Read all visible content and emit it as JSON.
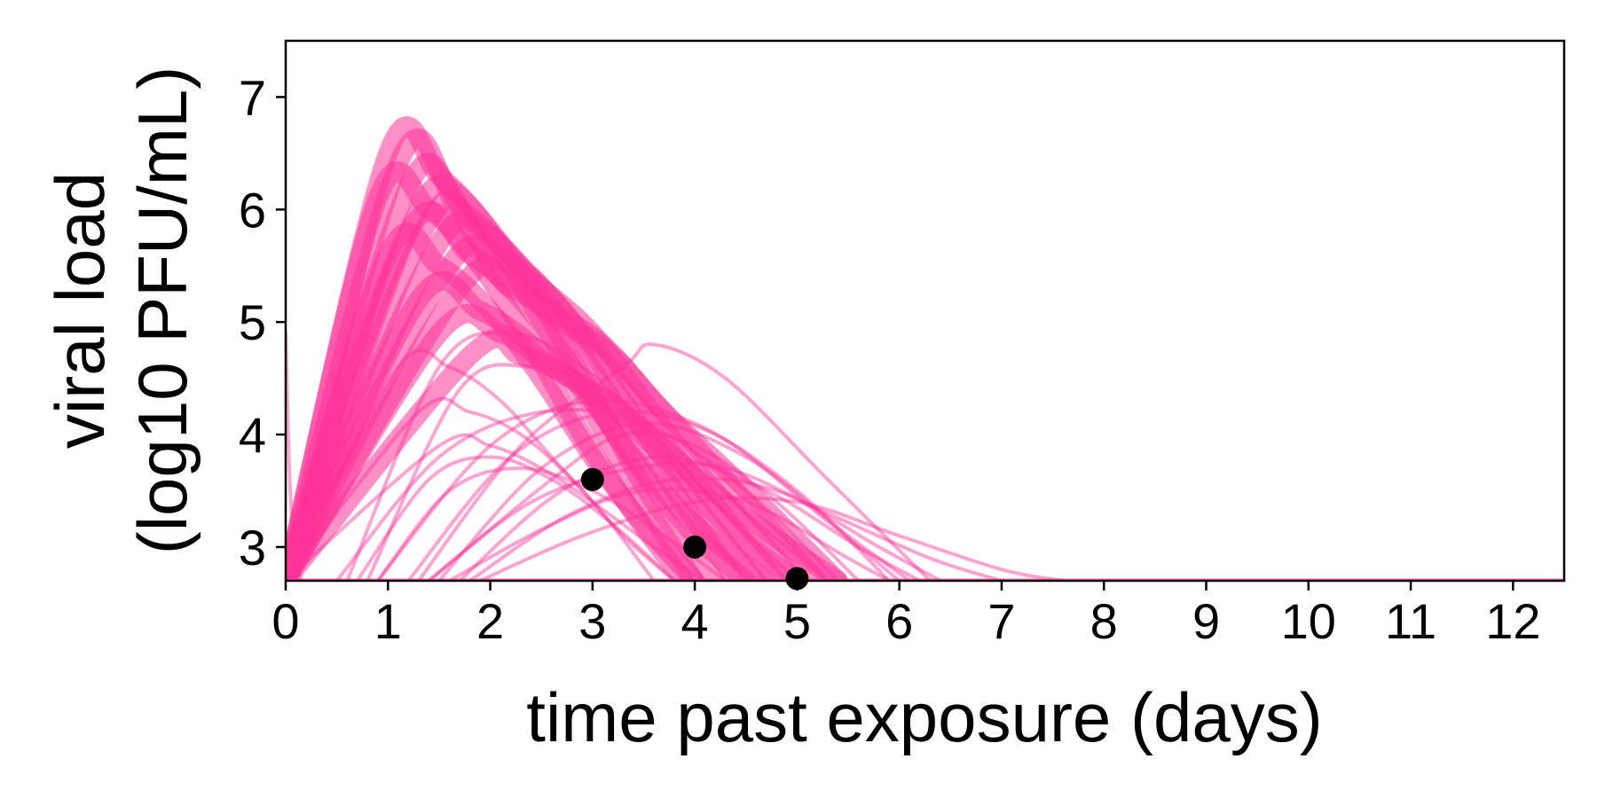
{
  "chart_data": {
    "type": "line",
    "xlabel": "time past exposure (days)",
    "ylabel_line1": "viral load",
    "ylabel_line2": "(log10 PFU/mL)",
    "xlim": [
      0,
      12.5
    ],
    "ylim": [
      2.7,
      7.5
    ],
    "x_ticks": [
      "0",
      "1",
      "2",
      "3",
      "4",
      "5",
      "6",
      "7",
      "8",
      "9",
      "10",
      "11",
      "12"
    ],
    "y_ticks": [
      "3",
      "4",
      "5",
      "6",
      "7"
    ],
    "grid": false,
    "legend": "none",
    "colors": {
      "curves": "#ff3399",
      "observed": "#000000"
    },
    "series": [
      {
        "values": [
          [
            0,
            2.7
          ],
          [
            1.0,
            6.5
          ],
          [
            1.5,
            6.3
          ],
          [
            2.0,
            5.8
          ],
          [
            2.5,
            5.0
          ],
          [
            3.0,
            4.2
          ],
          [
            3.5,
            3.4
          ],
          [
            4.0,
            2.7
          ]
        ]
      },
      {
        "values": [
          [
            0,
            2.7
          ],
          [
            1.1,
            6.4
          ],
          [
            1.6,
            6.2
          ],
          [
            2.1,
            5.7
          ],
          [
            2.6,
            5.0
          ],
          [
            3.1,
            4.2
          ],
          [
            3.6,
            3.4
          ],
          [
            4.2,
            2.7
          ]
        ]
      },
      {
        "values": [
          [
            0,
            2.7
          ],
          [
            1.2,
            6.2
          ],
          [
            1.7,
            6.0
          ],
          [
            2.2,
            5.6
          ],
          [
            2.7,
            5.0
          ],
          [
            3.2,
            4.3
          ],
          [
            3.8,
            3.5
          ],
          [
            4.4,
            2.7
          ]
        ]
      },
      {
        "values": [
          [
            0,
            2.7
          ],
          [
            1.3,
            6.0
          ],
          [
            1.8,
            5.9
          ],
          [
            2.3,
            5.5
          ],
          [
            2.8,
            5.0
          ],
          [
            3.3,
            4.3
          ],
          [
            3.9,
            3.5
          ],
          [
            4.6,
            2.7
          ]
        ]
      },
      {
        "values": [
          [
            0,
            2.7
          ],
          [
            1.4,
            5.9
          ],
          [
            1.9,
            5.7
          ],
          [
            2.4,
            5.4
          ],
          [
            2.9,
            4.9
          ],
          [
            3.4,
            4.3
          ],
          [
            4.0,
            3.6
          ],
          [
            4.8,
            2.7
          ]
        ]
      },
      {
        "values": [
          [
            0,
            2.7
          ],
          [
            1.5,
            5.7
          ],
          [
            2.0,
            5.6
          ],
          [
            2.5,
            5.3
          ],
          [
            3.0,
            4.9
          ],
          [
            3.5,
            4.3
          ],
          [
            4.1,
            3.6
          ],
          [
            5.0,
            2.7
          ]
        ]
      },
      {
        "values": [
          [
            0,
            2.7
          ],
          [
            1.6,
            5.5
          ],
          [
            2.1,
            5.4
          ],
          [
            2.6,
            5.1
          ],
          [
            3.1,
            4.8
          ],
          [
            3.6,
            4.3
          ],
          [
            4.3,
            3.6
          ],
          [
            5.2,
            2.7
          ]
        ]
      },
      {
        "values": [
          [
            0,
            2.7
          ],
          [
            1.7,
            5.3
          ],
          [
            2.2,
            5.3
          ],
          [
            2.7,
            5.0
          ],
          [
            3.2,
            4.7
          ],
          [
            3.7,
            4.2
          ],
          [
            4.4,
            3.6
          ],
          [
            5.4,
            2.7
          ]
        ]
      },
      {
        "values": [
          [
            0,
            2.7
          ],
          [
            0.9,
            6.1
          ],
          [
            1.4,
            6.0
          ],
          [
            1.9,
            5.5
          ],
          [
            2.4,
            4.8
          ],
          [
            2.9,
            4.0
          ],
          [
            3.4,
            3.3
          ],
          [
            3.9,
            2.7
          ]
        ]
      },
      {
        "values": [
          [
            0,
            2.7
          ],
          [
            1.0,
            5.6
          ],
          [
            1.5,
            5.5
          ],
          [
            2.0,
            5.1
          ],
          [
            2.5,
            4.5
          ],
          [
            3.0,
            3.8
          ],
          [
            3.5,
            3.2
          ],
          [
            4.0,
            2.7
          ]
        ]
      },
      {
        "values": [
          [
            0,
            2.7
          ],
          [
            1.2,
            5.8
          ],
          [
            1.8,
            5.6
          ],
          [
            2.3,
            5.2
          ],
          [
            2.8,
            4.6
          ],
          [
            3.3,
            3.9
          ],
          [
            3.9,
            3.2
          ],
          [
            4.5,
            2.7
          ]
        ]
      },
      {
        "values": [
          [
            0,
            2.7
          ],
          [
            1.3,
            5.2
          ],
          [
            1.9,
            5.1
          ],
          [
            2.4,
            4.8
          ],
          [
            2.9,
            4.4
          ],
          [
            3.4,
            3.8
          ],
          [
            4.0,
            3.2
          ],
          [
            4.7,
            2.7
          ]
        ]
      },
      {
        "values": [
          [
            0,
            2.7
          ],
          [
            1.5,
            4.9
          ],
          [
            2.1,
            4.9
          ],
          [
            2.6,
            4.6
          ],
          [
            3.1,
            4.3
          ],
          [
            3.7,
            3.8
          ],
          [
            4.3,
            3.2
          ],
          [
            5.0,
            2.7
          ]
        ]
      },
      {
        "values": [
          [
            0,
            2.7
          ],
          [
            1.8,
            4.7
          ],
          [
            2.3,
            4.7
          ],
          [
            2.8,
            4.5
          ],
          [
            3.3,
            4.2
          ],
          [
            3.9,
            3.7
          ],
          [
            4.6,
            3.2
          ],
          [
            5.4,
            2.7
          ]
        ]
      },
      {
        "values": [
          [
            0,
            2.7
          ],
          [
            1.1,
            4.6
          ],
          [
            1.6,
            4.6
          ],
          [
            2.1,
            4.3
          ],
          [
            2.6,
            3.8
          ],
          [
            3.1,
            3.3
          ],
          [
            3.6,
            2.7
          ]
        ]
      },
      {
        "values": [
          [
            0,
            2.7
          ],
          [
            1.3,
            4.2
          ],
          [
            1.8,
            4.2
          ],
          [
            2.3,
            4.0
          ],
          [
            2.8,
            3.6
          ],
          [
            3.3,
            3.1
          ],
          [
            3.8,
            2.7
          ]
        ]
      },
      {
        "values": [
          [
            0,
            2.7
          ],
          [
            1.5,
            3.9
          ],
          [
            2.0,
            3.9
          ],
          [
            2.5,
            3.7
          ],
          [
            3.0,
            3.4
          ],
          [
            3.6,
            3.0
          ],
          [
            4.1,
            2.7
          ]
        ]
      },
      {
        "values": [
          [
            0.5,
            2.7
          ],
          [
            1.5,
            3.8
          ],
          [
            2.5,
            4.2
          ],
          [
            3.5,
            4.1
          ],
          [
            4.5,
            3.5
          ],
          [
            5.4,
            2.7
          ]
        ]
      },
      {
        "values": [
          [
            0.9,
            2.7
          ],
          [
            2.0,
            3.9
          ],
          [
            3.0,
            4.3
          ],
          [
            4.0,
            4.1
          ],
          [
            5.0,
            3.5
          ],
          [
            5.9,
            2.7
          ]
        ]
      },
      {
        "values": [
          [
            1.2,
            2.7
          ],
          [
            2.2,
            3.8
          ],
          [
            3.2,
            4.2
          ],
          [
            4.2,
            4.0
          ],
          [
            5.2,
            3.3
          ],
          [
            6.0,
            2.7
          ]
        ]
      },
      {
        "values": [
          [
            1.5,
            2.7
          ],
          [
            2.5,
            3.7
          ],
          [
            3.5,
            4.1
          ],
          [
            4.5,
            3.8
          ],
          [
            5.5,
            3.1
          ],
          [
            6.1,
            2.7
          ]
        ]
      },
      {
        "values": [
          [
            1.3,
            2.7
          ],
          [
            2.3,
            3.9
          ],
          [
            3.3,
            4.6
          ],
          [
            3.6,
            4.8
          ],
          [
            4.3,
            4.5
          ],
          [
            5.3,
            3.6
          ],
          [
            6.3,
            2.7
          ]
        ]
      },
      {
        "values": [
          [
            1.6,
            2.7
          ],
          [
            2.6,
            3.2
          ],
          [
            3.5,
            3.5
          ],
          [
            4.5,
            3.4
          ],
          [
            5.5,
            2.9
          ],
          [
            5.9,
            2.7
          ]
        ]
      },
      {
        "values": [
          [
            1.8,
            2.7
          ],
          [
            2.8,
            3.3
          ],
          [
            3.8,
            3.6
          ],
          [
            4.8,
            3.5
          ],
          [
            5.8,
            3.0
          ],
          [
            6.4,
            2.7
          ]
        ]
      },
      {
        "values": [
          [
            1.4,
            2.7
          ],
          [
            2.4,
            3.4
          ],
          [
            3.4,
            3.7
          ],
          [
            4.3,
            3.7
          ],
          [
            5.3,
            3.3
          ],
          [
            6.3,
            2.9
          ],
          [
            7.0,
            2.7
          ]
        ]
      },
      {
        "values": [
          [
            1.9,
            2.7
          ],
          [
            2.9,
            3.1
          ],
          [
            4.0,
            3.4
          ],
          [
            5.0,
            3.4
          ],
          [
            6.0,
            3.1
          ],
          [
            7.0,
            2.8
          ],
          [
            7.6,
            2.7
          ]
        ]
      },
      {
        "values": [
          [
            1.4,
            2.7
          ],
          [
            2.6,
            3.6
          ],
          [
            3.3,
            4.0
          ],
          [
            4.0,
            3.9
          ],
          [
            4.8,
            3.4
          ],
          [
            5.6,
            2.7
          ]
        ]
      },
      {
        "values": [
          [
            1.7,
            2.7
          ],
          [
            2.7,
            3.5
          ],
          [
            3.7,
            3.8
          ],
          [
            4.7,
            3.5
          ],
          [
            5.6,
            3.0
          ],
          [
            6.2,
            2.7
          ]
        ]
      },
      {
        "values": [
          [
            0.6,
            2.7
          ],
          [
            1.5,
            4.6
          ],
          [
            2.2,
            4.9
          ],
          [
            2.9,
            4.6
          ],
          [
            3.6,
            4.0
          ],
          [
            4.3,
            3.3
          ],
          [
            5.0,
            2.7
          ]
        ]
      },
      {
        "values": [
          [
            0.8,
            2.7
          ],
          [
            1.7,
            4.4
          ],
          [
            2.4,
            4.6
          ],
          [
            3.1,
            4.4
          ],
          [
            3.8,
            3.9
          ],
          [
            4.5,
            3.3
          ],
          [
            5.3,
            2.7
          ]
        ]
      },
      {
        "values": [
          [
            0.7,
            2.7
          ],
          [
            1.4,
            3.6
          ],
          [
            2.0,
            3.8
          ],
          [
            2.6,
            3.6
          ],
          [
            3.2,
            3.2
          ],
          [
            3.8,
            2.7
          ]
        ]
      },
      {
        "values": [
          [
            0.9,
            2.7
          ],
          [
            1.6,
            3.5
          ],
          [
            2.3,
            3.7
          ],
          [
            3.0,
            3.5
          ],
          [
            3.7,
            3.1
          ],
          [
            4.3,
            2.7
          ]
        ]
      },
      {
        "values": [
          [
            0,
            4.9
          ],
          [
            0.05,
            3.4
          ],
          [
            0.15,
            2.7
          ]
        ]
      }
    ],
    "observed": {
      "name": "",
      "x": [
        3,
        4,
        5
      ],
      "y": [
        3.6,
        3.0,
        2.72
      ]
    }
  }
}
